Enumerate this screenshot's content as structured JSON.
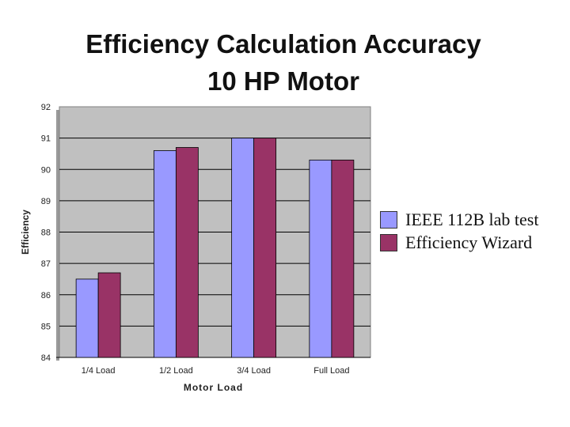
{
  "title": "Efficiency Calculation Accuracy",
  "subtitle": "10 HP Motor",
  "colors": {
    "plot_bg": "#c0c0c0",
    "series_1": "#9999ff",
    "series_2": "#993366",
    "grid": "#000000"
  },
  "chart_data": {
    "type": "bar",
    "title": "Efficiency Calculation Accuracy",
    "subtitle": "10 HP Motor",
    "xlabel": "Motor Load",
    "ylabel": "Efficiency",
    "ylim": [
      84,
      92
    ],
    "yticks": [
      84,
      85,
      86,
      87,
      88,
      89,
      90,
      91,
      92
    ],
    "grid": true,
    "legend_position": "right",
    "categories": [
      "1/4 Load",
      "1/2 Load",
      "3/4 Load",
      "Full Load"
    ],
    "series": [
      {
        "name": "IEEE 112B lab test",
        "values": [
          86.5,
          90.6,
          91.0,
          90.3
        ]
      },
      {
        "name": "Efficiency Wizard",
        "values": [
          86.7,
          90.7,
          91.0,
          90.3
        ]
      }
    ]
  }
}
